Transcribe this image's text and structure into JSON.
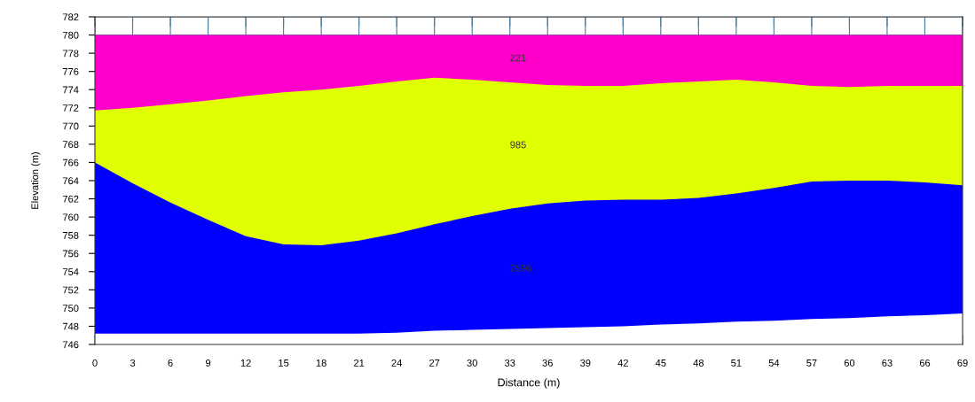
{
  "chart_data": {
    "type": "area",
    "xlabel": "Distance (m)",
    "ylabel": "Elevation (m)",
    "x": [
      0,
      3,
      6,
      9,
      12,
      15,
      18,
      21,
      24,
      27,
      30,
      33,
      36,
      39,
      42,
      45,
      48,
      51,
      54,
      57,
      60,
      63,
      66,
      69
    ],
    "series": [
      {
        "color": "#ff00cc",
        "values": [
          780,
          780,
          780,
          780,
          780,
          780,
          780,
          780,
          780,
          780,
          780,
          780,
          780,
          780,
          780,
          780,
          780,
          780,
          780,
          780,
          780,
          780,
          780,
          780
        ]
      },
      {
        "color": "#e0ff00",
        "values": [
          771.7,
          772.0,
          772.4,
          772.8,
          773.3,
          773.7,
          774.0,
          774.4,
          774.9,
          775.3,
          775.1,
          774.8,
          774.5,
          774.4,
          774.4,
          774.7,
          774.9,
          775.1,
          774.8,
          774.4,
          774.3,
          774.4,
          774.4,
          774.4
        ]
      },
      {
        "color": "#0000ff",
        "values": [
          766.0,
          763.7,
          761.6,
          759.7,
          757.9,
          757.0,
          756.9,
          757.4,
          758.2,
          759.2,
          760.1,
          760.9,
          761.5,
          761.8,
          761.9,
          761.9,
          762.1,
          762.6,
          763.2,
          763.9,
          764.0,
          764.0,
          763.8,
          763.5
        ]
      },
      {
        "color": "#ffffff",
        "values": [
          747.2,
          747.2,
          747.2,
          747.2,
          747.2,
          747.2,
          747.2,
          747.2,
          747.3,
          747.5,
          747.6,
          747.7,
          747.8,
          747.9,
          748.0,
          748.2,
          748.3,
          748.5,
          748.6,
          748.8,
          748.9,
          749.1,
          749.2,
          749.4
        ]
      }
    ],
    "annotations": [
      "221",
      "985",
      "2696"
    ],
    "xlim": [
      0,
      69
    ],
    "xticks": [
      0,
      3,
      6,
      9,
      12,
      15,
      18,
      21,
      24,
      27,
      30,
      33,
      36,
      39,
      42,
      45,
      48,
      51,
      54,
      57,
      60,
      63,
      66,
      69
    ],
    "ylim": [
      746,
      782
    ],
    "yticks": [
      746,
      748,
      750,
      752,
      754,
      756,
      758,
      760,
      762,
      764,
      766,
      768,
      770,
      772,
      774,
      776,
      778,
      780,
      782
    ],
    "grid": true
  }
}
